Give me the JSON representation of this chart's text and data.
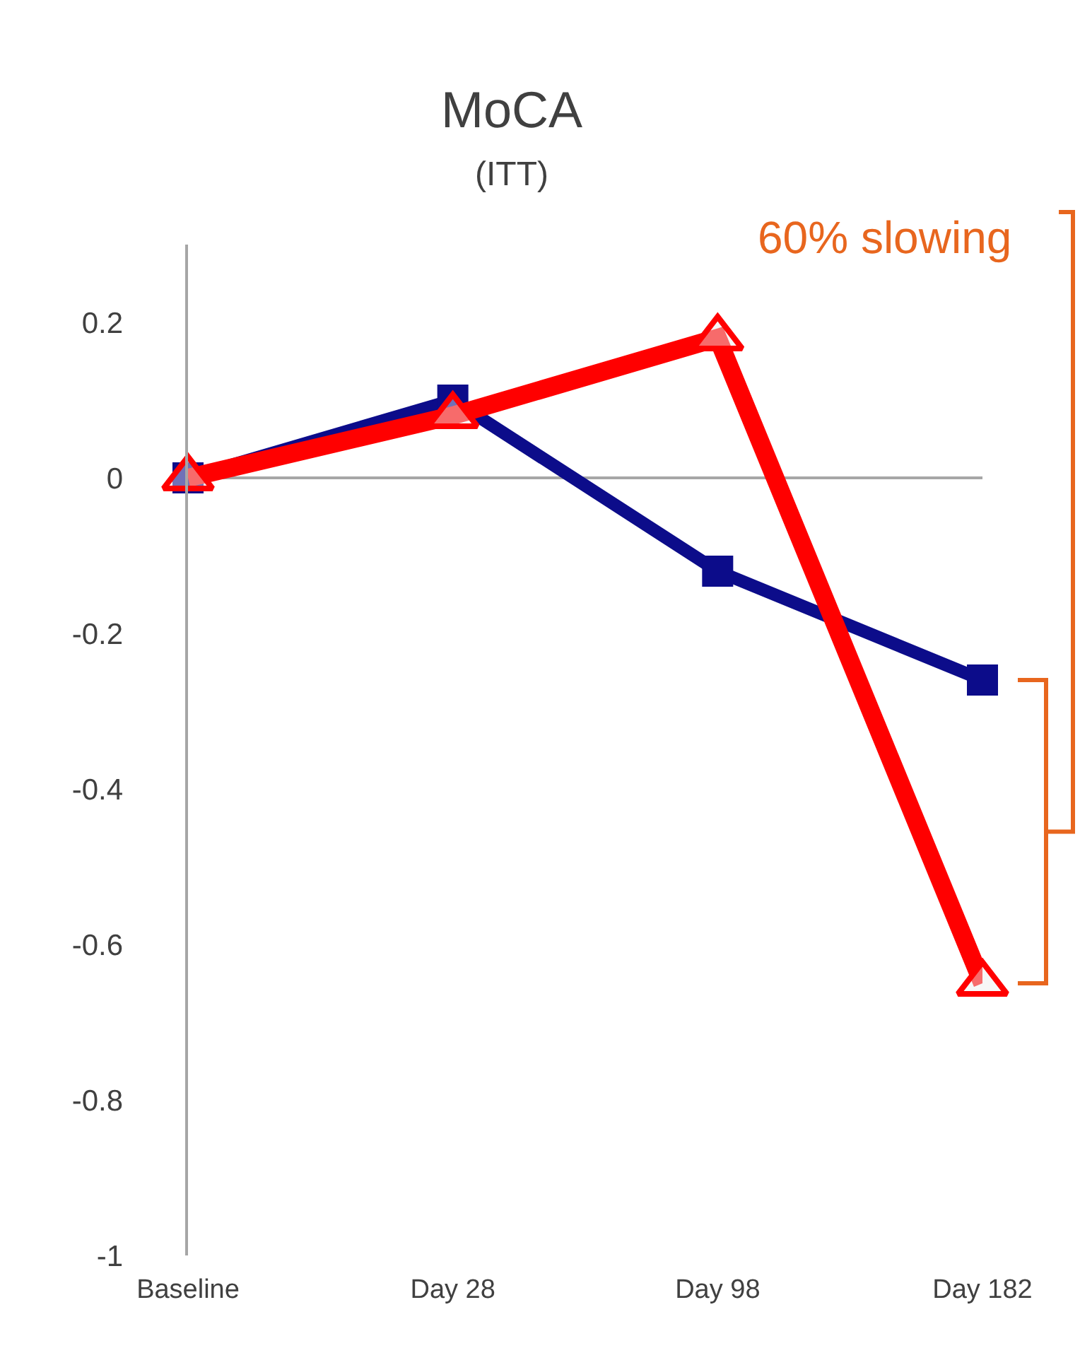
{
  "chart_data": {
    "type": "line",
    "title": "MoCA",
    "subtitle": "(ITT)",
    "categories": [
      "Baseline",
      "Day 28",
      "Day 98",
      "Day 182"
    ],
    "ylim": [
      -1,
      0.3
    ],
    "yticks": [
      0.2,
      0,
      -0.2,
      -0.4,
      -0.6,
      -0.8,
      -1
    ],
    "series": [
      {
        "color": "#0c0c8a",
        "values": [
          0,
          0.1,
          -0.12,
          -0.26
        ],
        "marker": "square"
      },
      {
        "color": "#ff0000",
        "values": [
          0,
          0.08,
          0.18,
          -0.65
        ],
        "marker": "triangle"
      }
    ],
    "annotations": [
      "60% slowing"
    ],
    "line_style": "solid"
  }
}
